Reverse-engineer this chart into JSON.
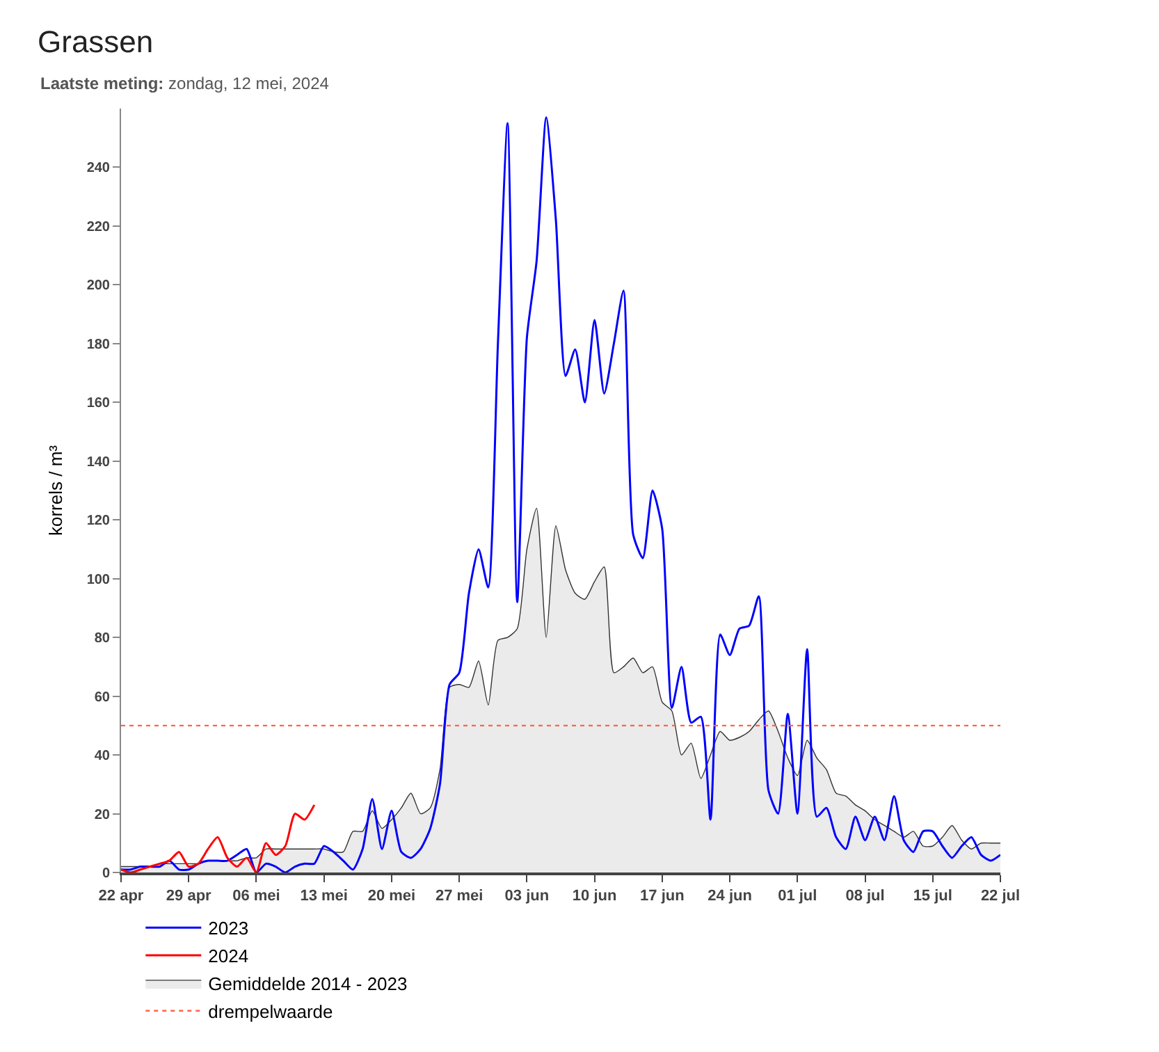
{
  "chart_data": {
    "type": "line",
    "title": "Grassen",
    "subtitle": "Laatste meting: zondag, 12 mei, 2024",
    "ylabel": "korrels / m³",
    "x": [
      "--04-22",
      "--04-23",
      "--04-24",
      "--04-25",
      "--04-26",
      "--04-27",
      "--04-28",
      "--04-29",
      "--04-30",
      "--05-01",
      "--05-02",
      "--05-03",
      "--05-04",
      "--05-05",
      "--05-06",
      "--05-07",
      "--05-08",
      "--05-09",
      "--05-10",
      "--05-11",
      "--05-12",
      "--05-13",
      "--05-14",
      "--05-15",
      "--05-16",
      "--05-17",
      "--05-18",
      "--05-19",
      "--05-20",
      "--05-21",
      "--05-22",
      "--05-23",
      "--05-24",
      "--05-25",
      "--05-26",
      "--05-27",
      "--05-28",
      "--05-29",
      "--05-30",
      "--05-31",
      "--06-01",
      "--06-02",
      "--06-03",
      "--06-04",
      "--06-05",
      "--06-06",
      "--06-07",
      "--06-08",
      "--06-09",
      "--06-10",
      "--06-11",
      "--06-12",
      "--06-13",
      "--06-14",
      "--06-15",
      "--06-16",
      "--06-17",
      "--06-18",
      "--06-19",
      "--06-20",
      "--06-21",
      "--06-22",
      "--06-23",
      "--06-24",
      "--06-25",
      "--06-26",
      "--06-27",
      "--06-28",
      "--06-29",
      "--06-30",
      "--07-01",
      "--07-02",
      "--07-03",
      "--07-04",
      "--07-05",
      "--07-06",
      "--07-07",
      "--07-08",
      "--07-09",
      "--07-10",
      "--07-11",
      "--07-12",
      "--07-13",
      "--07-14",
      "--07-15",
      "--07-16",
      "--07-17",
      "--07-18",
      "--07-19",
      "--07-20",
      "--07-21",
      "--07-22"
    ],
    "series": [
      {
        "name": "2023",
        "color": "#0000ff",
        "values": [
          1,
          1,
          2,
          2,
          2,
          4,
          1,
          1,
          3,
          4,
          4,
          4,
          6,
          8,
          0,
          3,
          2,
          0,
          2,
          3,
          3,
          9,
          7,
          4,
          1,
          8,
          25,
          8,
          21,
          7,
          5,
          8,
          15,
          30,
          64,
          68,
          95,
          110,
          97,
          180,
          255,
          92,
          182,
          208,
          257,
          222,
          169,
          178,
          160,
          188,
          163,
          180,
          198,
          115,
          107,
          130,
          117,
          56,
          70,
          51,
          53,
          18,
          81,
          74,
          83,
          84,
          94,
          28,
          20,
          54,
          20,
          76,
          19,
          22,
          12,
          8,
          19,
          11,
          19,
          11,
          26,
          11,
          7,
          14,
          14,
          9,
          5,
          9,
          12,
          6,
          4,
          6
        ]
      },
      {
        "name": "2024",
        "color": "#ff0000",
        "values": [
          1,
          0,
          1,
          2,
          3,
          4,
          7,
          2,
          3,
          8,
          12,
          5,
          2,
          5,
          0,
          10,
          6,
          9,
          20,
          18,
          23,
          null,
          null,
          null,
          null,
          null,
          null,
          null,
          null,
          null,
          null,
          null,
          null,
          null,
          null,
          null,
          null,
          null,
          null,
          null,
          null,
          null,
          null,
          null,
          null,
          null,
          null,
          null,
          null,
          null,
          null,
          null,
          null,
          null,
          null,
          null,
          null,
          null,
          null,
          null,
          null,
          null,
          null,
          null,
          null,
          null,
          null,
          null,
          null,
          null,
          null,
          null,
          null,
          null,
          null,
          null,
          null,
          null,
          null,
          null,
          null,
          null,
          null,
          null,
          null,
          null,
          null,
          null,
          null,
          null,
          null,
          null
        ]
      },
      {
        "name": "Gemiddelde 2014 - 2023",
        "type": "area",
        "color": "#333333",
        "values": [
          2,
          2,
          2,
          2,
          3,
          3,
          3,
          3,
          3,
          4,
          4,
          4,
          4,
          5,
          5,
          8,
          8,
          8,
          8,
          8,
          8,
          8,
          7,
          7,
          14,
          14,
          21,
          15,
          18,
          22,
          27,
          20,
          22,
          35,
          63,
          64,
          63,
          72,
          57,
          79,
          80,
          83,
          110,
          124,
          80,
          118,
          103,
          95,
          93,
          99,
          104,
          68,
          70,
          73,
          68,
          70,
          58,
          55,
          40,
          44,
          32,
          40,
          48,
          45,
          46,
          48,
          52,
          55,
          48,
          39,
          33,
          45,
          39,
          35,
          27,
          26,
          23,
          21,
          18,
          16,
          14,
          12,
          14,
          9,
          9,
          12,
          16,
          11,
          8,
          10,
          10,
          10
        ]
      }
    ],
    "ref_lines": [
      {
        "axis": "y",
        "value": 50,
        "label": "drempelwaarde",
        "color": "#ff6347",
        "line_style": "dotted"
      }
    ],
    "xlim": [
      "--04-22",
      "--07-22"
    ],
    "xticks": [
      {
        "value": "--04-22",
        "label": "22 apr"
      },
      {
        "value": "--04-29",
        "label": "29 apr"
      },
      {
        "value": "--05-06",
        "label": "06 mei"
      },
      {
        "value": "--05-13",
        "label": "13 mei"
      },
      {
        "value": "--05-20",
        "label": "20 mei"
      },
      {
        "value": "--05-27",
        "label": "27 mei"
      },
      {
        "value": "--06-03",
        "label": "03 jun"
      },
      {
        "value": "--06-10",
        "label": "10 jun"
      },
      {
        "value": "--06-17",
        "label": "17 jun"
      },
      {
        "value": "--06-24",
        "label": "24 jun"
      },
      {
        "value": "--07-01",
        "label": "01 jul"
      },
      {
        "value": "--07-08",
        "label": "08 jul"
      },
      {
        "value": "--07-15",
        "label": "15 jul"
      },
      {
        "value": "--07-22",
        "label": "22 jul"
      }
    ],
    "ylim": [
      0,
      260
    ],
    "yticks": [
      0,
      20,
      40,
      60,
      80,
      100,
      120,
      140,
      160,
      180,
      200,
      220,
      240
    ],
    "legend": "bottom left",
    "marker": "none",
    "line_style": "solid"
  }
}
